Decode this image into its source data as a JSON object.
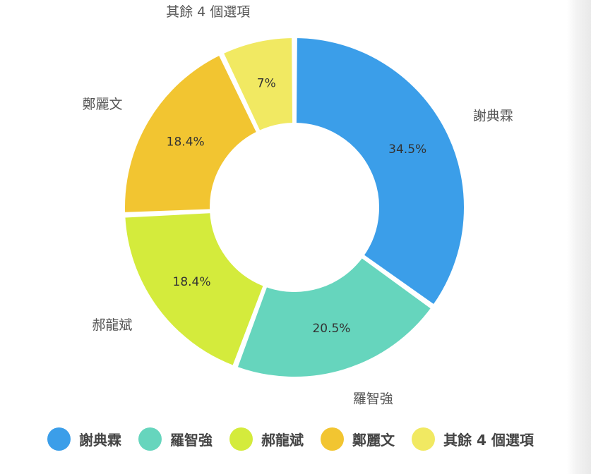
{
  "chart_data": {
    "type": "pie",
    "variant": "donut",
    "categories": [
      "謝典霖",
      "羅智強",
      "郝龍斌",
      "鄭麗文",
      "其餘 4 個選項"
    ],
    "values": [
      34.5,
      20.5,
      18.4,
      18.4,
      7
    ],
    "value_labels": [
      "34.5%",
      "20.5%",
      "18.4%",
      "18.4%",
      "7%"
    ],
    "colors": [
      "#3b9ee9",
      "#66d5bd",
      "#d4eb3c",
      "#f2c531",
      "#f1e962"
    ],
    "legend_position": "bottom",
    "start_angle_deg": 0,
    "direction": "clockwise"
  }
}
